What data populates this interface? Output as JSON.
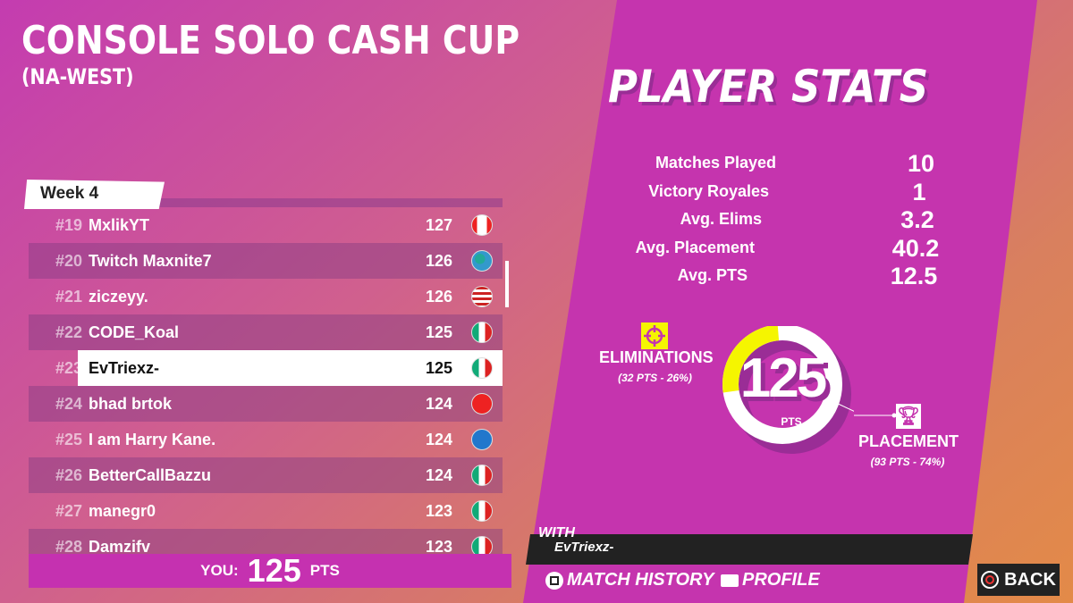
{
  "header": {
    "title": "CONSOLE SOLO CASH CUP",
    "region": "(NA-WEST)"
  },
  "leaderboard": {
    "tab": "Week 4",
    "rows": [
      {
        "rank": "#19",
        "name": "MxlikYT",
        "pts": "127",
        "flag": "canada-flag-icon"
      },
      {
        "rank": "#20",
        "name": "Twitch Maxnite7",
        "pts": "126",
        "flag": "globe-icon"
      },
      {
        "rank": "#21",
        "name": "ziczeyy.",
        "pts": "126",
        "flag": "usa-flag-icon"
      },
      {
        "rank": "#22",
        "name": "CODE_Koal",
        "pts": "125",
        "flag": "mexico-flag-icon"
      },
      {
        "rank": "#23",
        "name": "EvTriexz-",
        "pts": "125",
        "flag": "mexico-flag-icon",
        "highlight": true
      },
      {
        "rank": "#24",
        "name": "bhad brtok",
        "pts": "124",
        "flag": "turkey-flag-icon"
      },
      {
        "rank": "#25",
        "name": "I am Harry Kane.",
        "pts": "124",
        "flag": "scotland-flag-icon"
      },
      {
        "rank": "#26",
        "name": "BetterCallBazzu",
        "pts": "124",
        "flag": "mexico-flag-icon"
      },
      {
        "rank": "#27",
        "name": "manegr0",
        "pts": "123",
        "flag": "mexico-flag-icon"
      },
      {
        "rank": "#28",
        "name": "Damzifv",
        "pts": "123",
        "flag": "mexico-flag-icon"
      }
    ],
    "you_label": "YOU:",
    "you_value": "125",
    "you_unit": "PTS"
  },
  "stats": {
    "title": "PLAYER STATS",
    "items": [
      {
        "label": "Matches Played",
        "value": "10"
      },
      {
        "label": "Victory Royales",
        "value": "1"
      },
      {
        "label": "Avg. Elims",
        "value": "3.2"
      },
      {
        "label": "Avg. Placement",
        "value": "40.2"
      },
      {
        "label": "Avg. PTS",
        "value": "12.5"
      }
    ]
  },
  "breakdown": {
    "total": "125",
    "unit": "PTS",
    "elim_label": "ELIMINATIONS",
    "elim_sub": "(32 PTS - 26%)",
    "elim_fraction": 0.26,
    "placement_label": "PLACEMENT",
    "placement_sub": "(93 PTS - 74%)",
    "elim_color": "#f5f500"
  },
  "footer": {
    "with_label": "WITH",
    "with_name": "EvTriexz-",
    "match_history": "MATCH HISTORY",
    "profile": "PROFILE",
    "back": "BACK"
  },
  "colors": {
    "panel": "#c534ae",
    "accent_yellow": "#f5f500"
  }
}
